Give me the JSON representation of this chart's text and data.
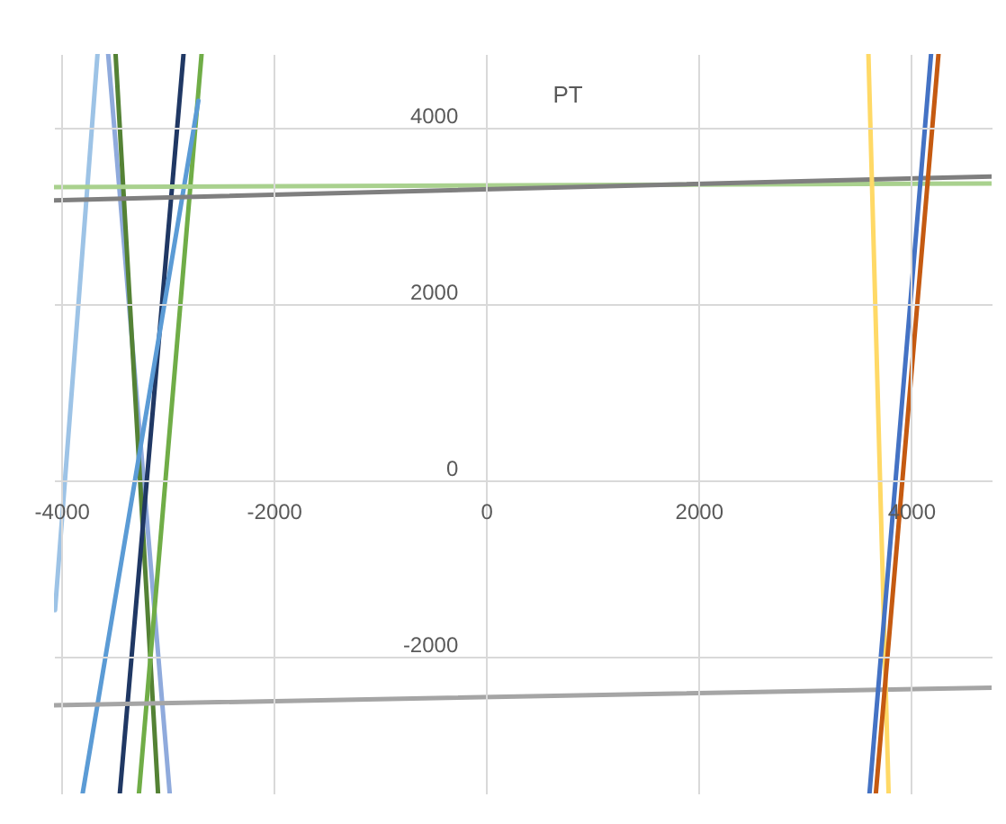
{
  "chart_data": {
    "type": "line",
    "title": "PT",
    "xlim": [
      -4070,
      4760
    ],
    "ylim": [
      -3550,
      4840
    ],
    "xticks": [
      -4000,
      -2000,
      0,
      2000,
      4000
    ],
    "yticks": [
      -2000,
      0,
      2000,
      4000
    ],
    "grid": true,
    "legend": false,
    "marker": "none",
    "line_style": "solid",
    "series": [
      {
        "color": "#9dc3e6",
        "x": [
          -3660,
          -4060
        ],
        "values": [
          4840,
          -1470
        ]
      },
      {
        "color": "#8faadc",
        "x": [
          -3560,
          -2980
        ],
        "values": [
          4840,
          -3550
        ]
      },
      {
        "color": "#548235",
        "x": [
          -3490,
          -3090
        ],
        "values": [
          4840,
          -3550
        ]
      },
      {
        "color": "#203864",
        "x": [
          -2850,
          -3450
        ],
        "values": [
          4840,
          -3550
        ]
      },
      {
        "color": "#70ad47",
        "x": [
          -2680,
          -3270
        ],
        "values": [
          4840,
          -3550
        ]
      },
      {
        "color": "#5b9bd5",
        "x": [
          -2710,
          -3800
        ],
        "values": [
          4310,
          -3550
        ]
      },
      {
        "color": "#a9d18e",
        "x": [
          -4070,
          4760
        ],
        "values": [
          3330,
          3370
        ]
      },
      {
        "color": "#7f7f7f",
        "x": [
          -4070,
          4760
        ],
        "values": [
          3180,
          3450
        ]
      },
      {
        "color": "#a5a5a5",
        "x": [
          -4070,
          4760
        ],
        "values": [
          -2550,
          -2350
        ]
      },
      {
        "color": "#ffd966",
        "x": [
          3600,
          3790
        ],
        "values": [
          4840,
          -3550
        ]
      },
      {
        "color": "#4472c4",
        "x": [
          4190,
          3610
        ],
        "values": [
          4840,
          -3550
        ]
      },
      {
        "color": "#c55a11",
        "x": [
          4260,
          3670
        ],
        "values": [
          4840,
          -3550
        ]
      }
    ]
  }
}
